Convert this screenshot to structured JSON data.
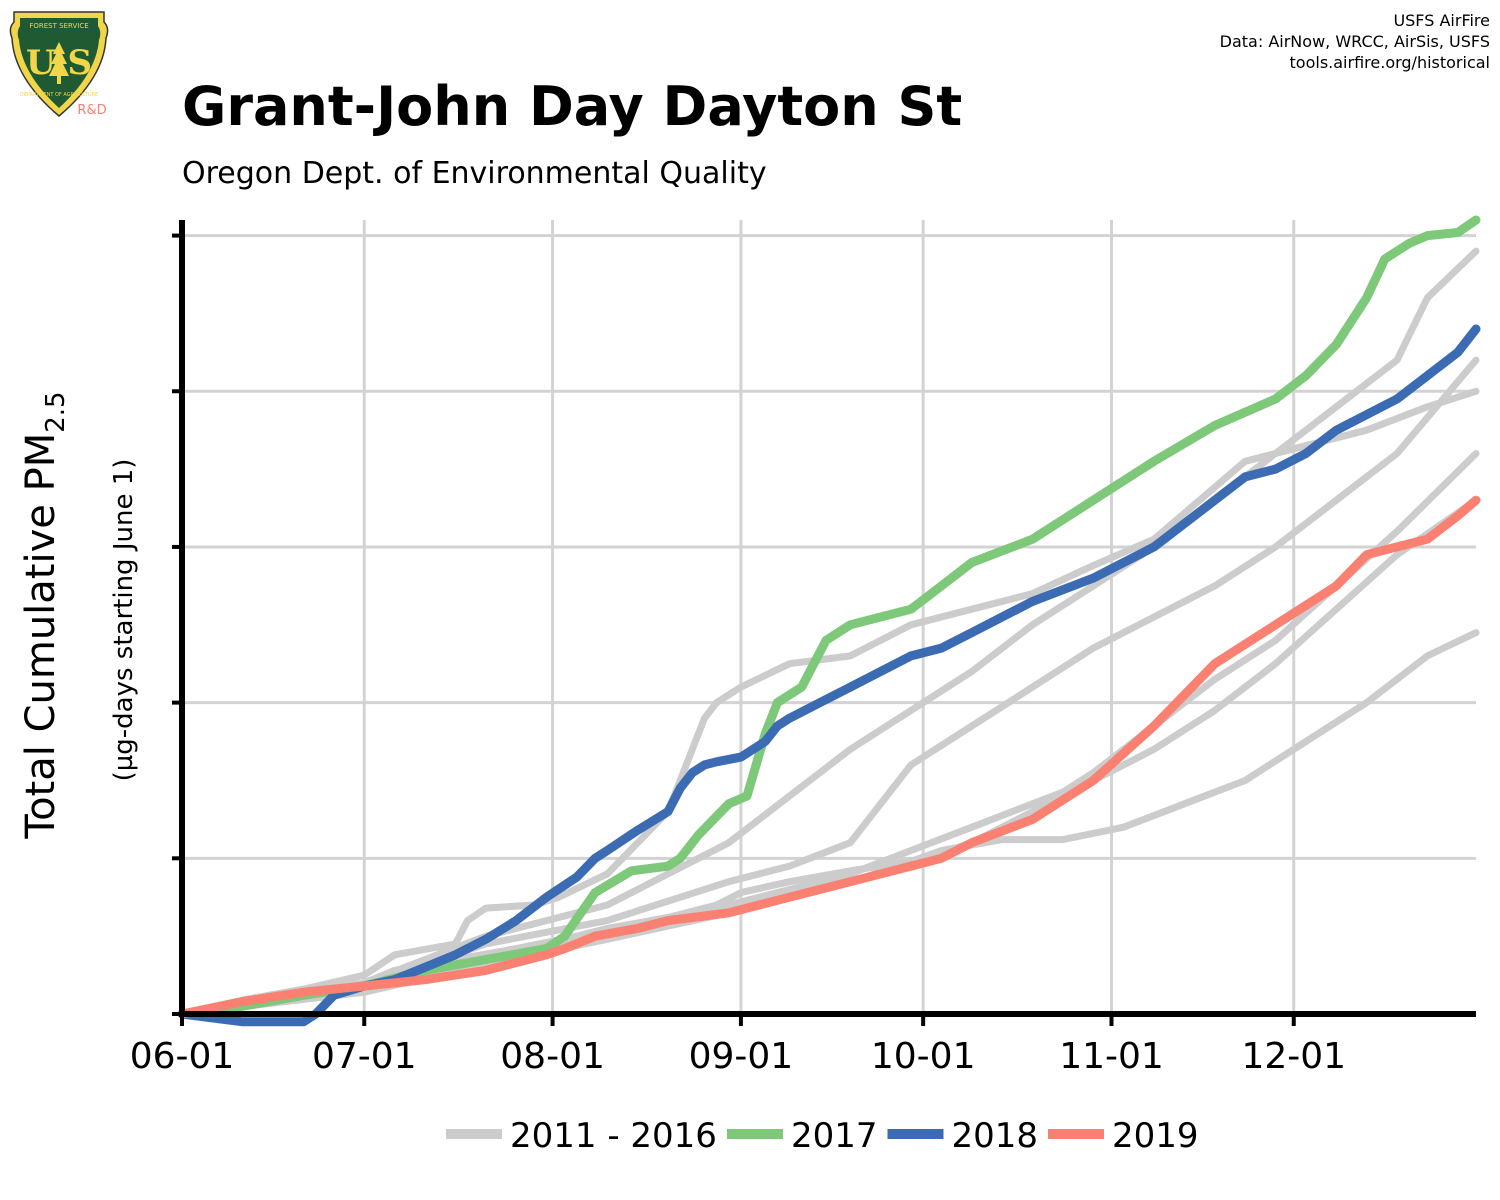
{
  "header": {
    "title": "Grant-John Day Dayton St",
    "subtitle": "Oregon Dept. of Environmental Quality",
    "credits": [
      "USFS AirFire",
      "Data: AirNow, WRCC, AirSis, USFS",
      "tools.airfire.org/historical"
    ]
  },
  "logo": {
    "icon": "forest-service-shield-icon",
    "text_top": "FOREST SERVICE",
    "text_main": "U S",
    "text_bottom": "DEPARTMENT OF AGRICULTURE",
    "text_rd": "R&D"
  },
  "colors": {
    "historical": "#cccccc",
    "y2017": "#7ec87a",
    "y2018": "#3a6bb3",
    "y2019": "#fa8072",
    "grid": "#d3d3d3",
    "axis": "#000000"
  },
  "chart_data": {
    "type": "line",
    "title": "Grant-John Day Dayton St",
    "subtitle": "Oregon Dept. of Environmental Quality",
    "xlabel": "",
    "ylabel_main": "Total Cumulative PM",
    "ylabel_sub": "2.5",
    "ylabel_secondary": "(µg-days starting June 1)",
    "x_ticks": [
      "06-01",
      "07-01",
      "08-01",
      "09-01",
      "10-01",
      "11-01",
      "12-01"
    ],
    "x_tick_days": [
      0,
      30,
      61,
      92,
      122,
      153,
      183
    ],
    "xlim": [
      0,
      213
    ],
    "ylim": [
      0,
      5.1
    ],
    "y_ticks": [
      0,
      1,
      2,
      3,
      4,
      5
    ],
    "y_tick_labels_shown": false,
    "grid": true,
    "legend": "bottom",
    "legend_entries": [
      {
        "label": "2011 - 2016",
        "color_key": "historical"
      },
      {
        "label": "2017",
        "color_key": "y2017"
      },
      {
        "label": "2018",
        "color_key": "y2018"
      },
      {
        "label": "2019",
        "color_key": "y2019"
      }
    ],
    "series": [
      {
        "group": "historical",
        "x": [
          0,
          10,
          20,
          30,
          35,
          45,
          55,
          60,
          65,
          70,
          80,
          88,
          92,
          100,
          110,
          120,
          125,
          135,
          145,
          155,
          165,
          175,
          185,
          195,
          205,
          213
        ],
        "y": [
          0,
          0.08,
          0.14,
          0.2,
          0.28,
          0.35,
          0.42,
          0.46,
          0.5,
          0.55,
          0.62,
          0.7,
          0.78,
          0.85,
          0.92,
          0.98,
          1.05,
          1.12,
          1.12,
          1.2,
          1.35,
          1.5,
          1.75,
          2.0,
          2.3,
          2.45
        ]
      },
      {
        "group": "historical",
        "x": [
          0,
          10,
          20,
          30,
          35,
          45,
          47,
          50,
          58,
          62,
          70,
          80,
          86,
          88,
          92,
          100,
          110,
          120,
          130,
          140,
          150,
          160,
          175,
          185,
          195,
          205,
          213
        ],
        "y": [
          0,
          0.09,
          0.16,
          0.25,
          0.38,
          0.45,
          0.6,
          0.68,
          0.7,
          0.75,
          0.9,
          1.3,
          1.9,
          2.0,
          2.1,
          2.25,
          2.3,
          2.5,
          2.6,
          2.7,
          2.88,
          3.05,
          3.55,
          3.65,
          3.75,
          3.9,
          4.0
        ]
      },
      {
        "group": "historical",
        "x": [
          0,
          30,
          50,
          70,
          90,
          100,
          110,
          120,
          130,
          140,
          150,
          160,
          170,
          180,
          190,
          200,
          205,
          213
        ],
        "y": [
          0,
          0.2,
          0.5,
          0.7,
          1.1,
          1.4,
          1.7,
          1.95,
          2.2,
          2.5,
          2.75,
          3.0,
          3.3,
          3.6,
          3.9,
          4.2,
          4.6,
          4.9
        ]
      },
      {
        "group": "historical",
        "x": [
          0,
          30,
          50,
          70,
          90,
          100,
          110,
          112,
          120,
          130,
          140,
          150,
          160,
          170,
          180,
          190,
          200,
          213
        ],
        "y": [
          0,
          0.18,
          0.45,
          0.6,
          0.85,
          0.95,
          1.1,
          1.2,
          1.6,
          1.85,
          2.1,
          2.35,
          2.55,
          2.75,
          3.0,
          3.3,
          3.6,
          4.2
        ]
      },
      {
        "group": "historical",
        "x": [
          0,
          30,
          50,
          70,
          90,
          110,
          120,
          130,
          140,
          150,
          160,
          170,
          180,
          190,
          200,
          213
        ],
        "y": [
          0,
          0.15,
          0.35,
          0.5,
          0.7,
          0.9,
          1.05,
          1.2,
          1.35,
          1.5,
          1.7,
          1.95,
          2.25,
          2.6,
          2.95,
          3.3
        ]
      },
      {
        "group": "historical",
        "x": [
          0,
          30,
          50,
          70,
          90,
          110,
          120,
          130,
          140,
          150,
          160,
          170,
          180,
          190,
          200,
          213
        ],
        "y": [
          0,
          0.14,
          0.32,
          0.48,
          0.65,
          0.85,
          0.97,
          1.1,
          1.3,
          1.55,
          1.85,
          2.15,
          2.4,
          2.75,
          3.1,
          3.6
        ]
      },
      {
        "group": "y2017",
        "x": [
          0,
          10,
          20,
          30,
          40,
          50,
          60,
          63,
          68,
          74,
          80,
          82,
          85,
          90,
          93,
          96,
          98,
          102,
          106,
          110,
          115,
          120,
          125,
          130,
          140,
          150,
          160,
          170,
          180,
          185,
          190,
          195,
          198,
          202,
          205,
          210,
          213
        ],
        "y": [
          0,
          0.05,
          0.12,
          0.18,
          0.28,
          0.35,
          0.42,
          0.5,
          0.78,
          0.92,
          0.95,
          1.0,
          1.15,
          1.35,
          1.4,
          1.8,
          2.0,
          2.1,
          2.4,
          2.5,
          2.55,
          2.6,
          2.75,
          2.9,
          3.05,
          3.3,
          3.55,
          3.78,
          3.95,
          4.1,
          4.3,
          4.6,
          4.85,
          4.95,
          5.0,
          5.02,
          5.1
        ]
      },
      {
        "group": "y2018",
        "x": [
          0,
          10,
          20,
          22,
          25,
          30,
          35,
          40,
          45,
          50,
          55,
          60,
          65,
          68,
          70,
          75,
          80,
          82,
          84,
          86,
          88,
          92,
          96,
          98,
          100,
          105,
          110,
          115,
          120,
          125,
          130,
          140,
          150,
          155,
          160,
          165,
          170,
          175,
          180,
          185,
          190,
          195,
          200,
          205,
          210,
          213
        ],
        "y": [
          0,
          -0.05,
          -0.05,
          0.0,
          0.12,
          0.18,
          0.22,
          0.3,
          0.38,
          0.48,
          0.6,
          0.75,
          0.88,
          1.0,
          1.05,
          1.18,
          1.3,
          1.45,
          1.55,
          1.6,
          1.62,
          1.65,
          1.75,
          1.85,
          1.9,
          2.0,
          2.1,
          2.2,
          2.3,
          2.35,
          2.45,
          2.65,
          2.8,
          2.9,
          3.0,
          3.15,
          3.3,
          3.45,
          3.5,
          3.6,
          3.75,
          3.85,
          3.95,
          4.1,
          4.25,
          4.4
        ]
      },
      {
        "group": "y2019",
        "x": [
          0,
          10,
          20,
          30,
          35,
          40,
          45,
          50,
          60,
          63,
          68,
          75,
          80,
          90,
          95,
          100,
          110,
          120,
          125,
          130,
          140,
          150,
          160,
          170,
          180,
          190,
          195,
          200,
          205,
          210,
          213
        ],
        "y": [
          0,
          0.08,
          0.14,
          0.18,
          0.2,
          0.22,
          0.25,
          0.28,
          0.38,
          0.42,
          0.5,
          0.55,
          0.6,
          0.65,
          0.7,
          0.75,
          0.85,
          0.95,
          1.0,
          1.1,
          1.25,
          1.5,
          1.85,
          2.25,
          2.5,
          2.75,
          2.95,
          3.0,
          3.05,
          3.2,
          3.3
        ]
      }
    ]
  }
}
